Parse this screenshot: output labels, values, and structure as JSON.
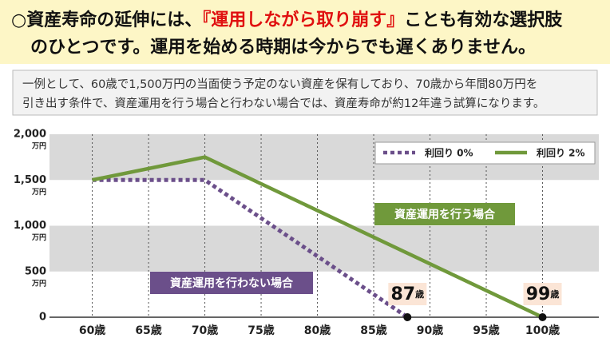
{
  "header": {
    "title_parts": [
      "○資産寿命の延伸には、",
      "『運用しながら取り崩す』",
      "ことも有効な選択肢"
    ],
    "title_line2": "のひとつです。運用を始める時期は今からでも遅くありません。"
  },
  "description": [
    "一例として、60歳で1,500万円の当面使う予定のない資産を保有しており、70歳から年間80万円を",
    "引き出す条件で、資産運用を行う場合と行わない場合では、資産寿命が約12年違う試算になります。"
  ],
  "chart_data": {
    "type": "line",
    "xlim": [
      56.2,
      105
    ],
    "xticks": [
      {
        "value": 60,
        "label": "60歳"
      },
      {
        "value": 65,
        "label": "65歳"
      },
      {
        "value": 70,
        "label": "70歳"
      },
      {
        "value": 75,
        "label": "75歳"
      },
      {
        "value": 80,
        "label": "80歳"
      },
      {
        "value": 85,
        "label": "85歳"
      },
      {
        "value": 90,
        "label": "90歳"
      },
      {
        "value": 95,
        "label": "95歳"
      },
      {
        "value": 100,
        "label": "100歳"
      }
    ],
    "ylim": [
      0,
      2000
    ],
    "yticks": [
      0,
      {
        "value": 500,
        "label": "500"
      },
      {
        "value": 1000,
        "label": "1,000"
      },
      {
        "value": 1500,
        "label": "1,500"
      },
      {
        "value": 2000,
        "label": "2,000"
      }
    ],
    "y_unit": "万円",
    "legend_position": "upper right",
    "series": [
      {
        "name": "利回り 0%",
        "color": "#6b4f8a",
        "dash": true,
        "x": [
          60,
          70,
          88
        ],
        "values": [
          1500,
          1500,
          0
        ]
      },
      {
        "name": "利回り 2%",
        "color": "#70993b",
        "dash": false,
        "x": [
          60,
          70,
          100
        ],
        "values": [
          1500,
          1750,
          0
        ]
      }
    ],
    "annotations": [
      "資産運用を行わない場合",
      "資産運用を行う場合"
    ],
    "end_labels": [
      {
        "number": "87",
        "unit": "歳"
      },
      {
        "number": "99",
        "unit": "歳"
      }
    ]
  }
}
